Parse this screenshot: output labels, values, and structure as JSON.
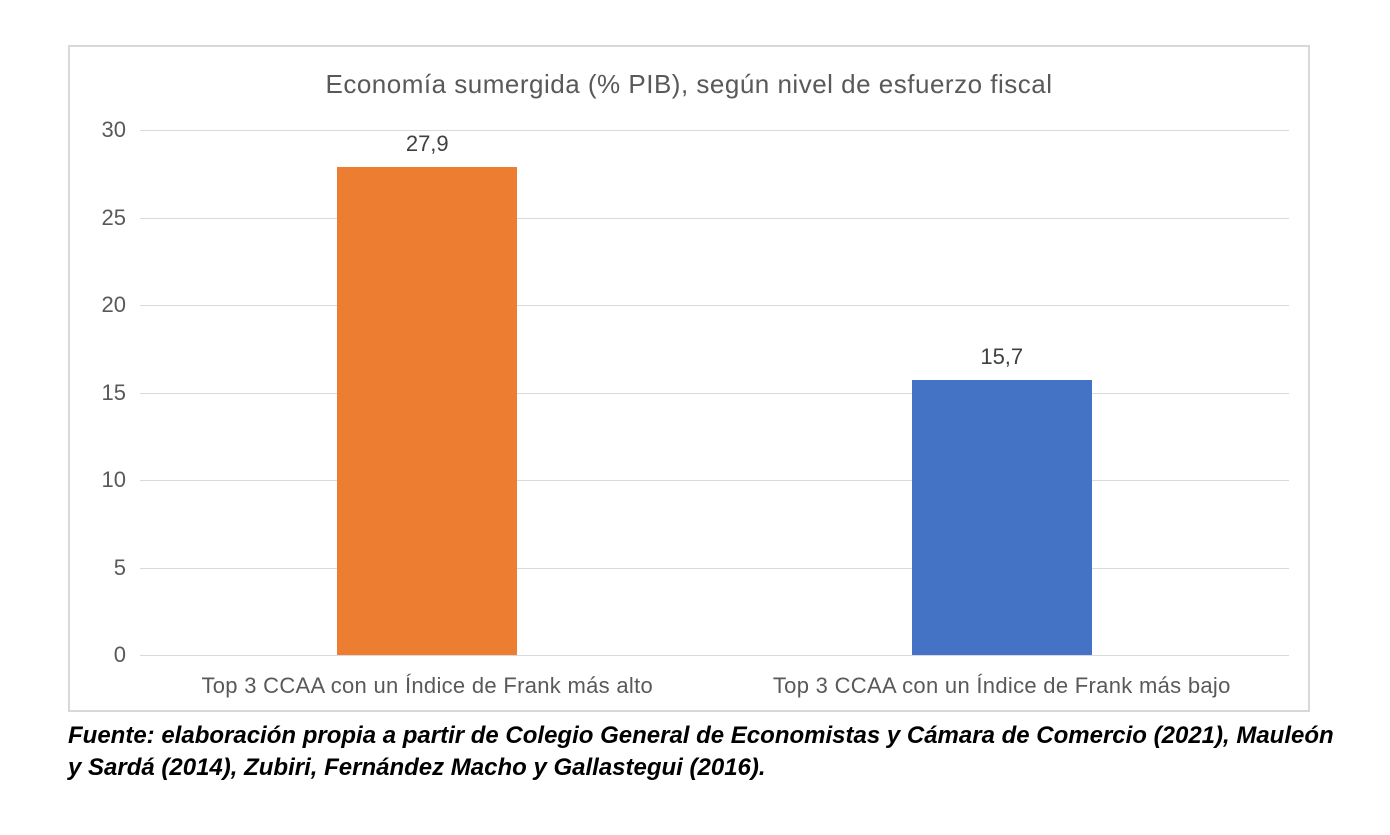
{
  "chart_style": {
    "frame_border_color": "#d8d8d8",
    "background_color": "#ffffff",
    "title_color": "#595959",
    "axis_label_color": "#595959",
    "data_label_color": "#404040",
    "gridline_color": "#d9d9d9"
  },
  "chart_data": {
    "type": "bar",
    "title": "Economía sumergida (% PIB), según nivel de esfuerzo fiscal",
    "categories": [
      "Top 3 CCAA con un Índice de Frank más alto",
      "Top 3 CCAA con un Índice de Frank más bajo"
    ],
    "values": [
      27.9,
      15.7
    ],
    "value_labels": [
      "27,9",
      "15,7"
    ],
    "series_colors": [
      "#ED7D31",
      "#4472C4"
    ],
    "ylim": [
      0,
      30
    ],
    "yticks": [
      0,
      5,
      10,
      15,
      20,
      25,
      30
    ],
    "grid": true,
    "legend": false,
    "xlabel": "",
    "ylabel": ""
  },
  "source": {
    "line1": "Fuente: elaboración propia a partir de Colegio General de Economistas y Cámara de Comercio (2021), Mauleón",
    "line2": "y Sardá (2014), Zubiri, Fernández Macho y Gallastegui (2016)."
  }
}
